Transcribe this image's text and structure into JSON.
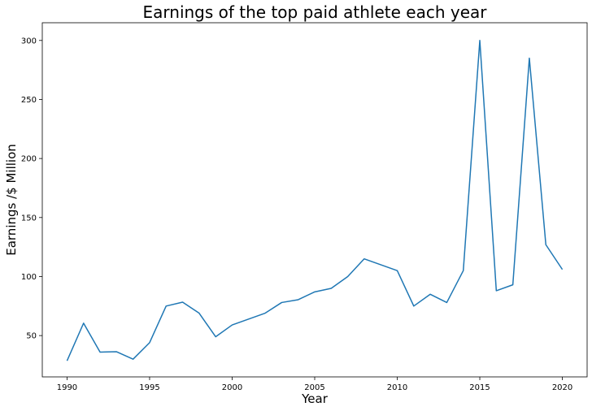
{
  "chart_data": {
    "type": "line",
    "title": "Earnings of the top paid athlete each year",
    "xlabel": "Year",
    "ylabel": "Earnings /$ Million",
    "xlim": [
      1988.5,
      2021.5
    ],
    "ylim": [
      15,
      315
    ],
    "xticks": [
      1990,
      1995,
      2000,
      2005,
      2010,
      2015,
      2020
    ],
    "yticks": [
      50,
      100,
      150,
      200,
      250,
      300
    ],
    "grid": false,
    "line_color": "#1f77b4",
    "series": [
      {
        "x": [
          1990,
          1991,
          1992,
          1993,
          1994,
          1995,
          1996,
          1997,
          1998,
          1999,
          2000,
          2001,
          2002,
          2003,
          2004,
          2005,
          2006,
          2007,
          2008,
          2009,
          2010,
          2011,
          2012,
          2013,
          2014,
          2015,
          2016,
          2017,
          2018,
          2019,
          2020
        ],
        "values": [
          28.6,
          60.5,
          36,
          36.3,
          30,
          44,
          75,
          78.3,
          69,
          49,
          59,
          64,
          69,
          78,
          80.4,
          87,
          90,
          100,
          115,
          110,
          105,
          75,
          85,
          78,
          105,
          300,
          88,
          93,
          285,
          127,
          106
        ]
      }
    ]
  }
}
